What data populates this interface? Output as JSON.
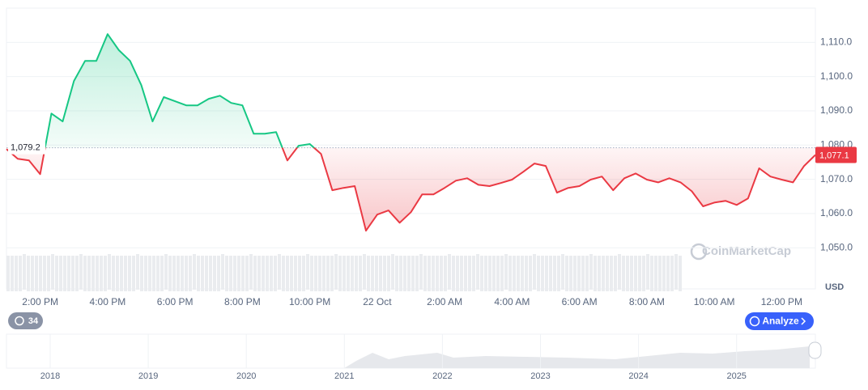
{
  "chart_data": {
    "type": "line",
    "categories": [
      null,
      null,
      null,
      "2:00 PM",
      null,
      null,
      null,
      null,
      null,
      "4:00 PM",
      null,
      null,
      null,
      null,
      null,
      "6:00 PM",
      null,
      null,
      null,
      null,
      null,
      "8:00 PM",
      null,
      null,
      null,
      null,
      null,
      "10:00 PM",
      null,
      null,
      null,
      null,
      null,
      "22 Oct",
      null,
      null,
      null,
      null,
      null,
      "2:00 AM",
      null,
      null,
      null,
      null,
      null,
      "4:00 AM",
      null,
      null,
      null,
      null,
      null,
      "6:00 AM",
      null,
      null,
      null,
      null,
      null,
      "8:00 AM",
      null,
      null,
      null,
      null,
      null,
      "10:00 AM",
      null,
      null,
      null,
      null,
      null,
      "12:00 PM",
      null,
      null,
      null
    ],
    "values": [
      1078.8,
      1076,
      1075.5,
      1071.5,
      1089.2,
      1086.9,
      1098.7,
      1104.6,
      1104.6,
      1112.4,
      1107.7,
      1104.6,
      1097.5,
      1086.9,
      1094,
      1092.8,
      1091.6,
      1091.6,
      1093.5,
      1094.4,
      1092.3,
      1091.6,
      1083.3,
      1083.3,
      1083.8,
      1075.5,
      1079.8,
      1080.3,
      1077.4,
      1066.8,
      1067.5,
      1068,
      1055,
      1059.7,
      1060.9,
      1057.3,
      1060.4,
      1065.6,
      1065.6,
      1067.5,
      1069.6,
      1070.3,
      1068.4,
      1068,
      1068.9,
      1069.9,
      1072.2,
      1074.6,
      1073.9,
      1066.1,
      1067.5,
      1068,
      1069.9,
      1070.8,
      1066.8,
      1070.3,
      1071.7,
      1069.9,
      1069.1,
      1070.3,
      1069.1,
      1066.5,
      1062.1,
      1063.2,
      1063.7,
      1062.5,
      1064.4,
      1073.2,
      1070.8,
      1069.9,
      1069.1,
      1073.9,
      1077.1
    ],
    "up_color": "#16c784",
    "down_color": "#ea3943",
    "baseline": {
      "value": 1079.2,
      "label": "1,079.2"
    },
    "current": {
      "value": 1077.1,
      "label": "1,077.1"
    },
    "ylim": [
      1038,
      1120
    ],
    "yticks": [
      {
        "value": 1050,
        "label": "1,050.0"
      },
      {
        "value": 1060,
        "label": "1,060.0"
      },
      {
        "value": 1070,
        "label": "1,070.0"
      },
      {
        "value": 1080,
        "label": "1,080.0"
      },
      {
        "value": 1090,
        "label": "1,090.0"
      },
      {
        "value": 1100,
        "label": "1,100.0"
      },
      {
        "value": 1110,
        "label": "1,110.0"
      }
    ],
    "y_axis_label": "USD",
    "grid": true
  },
  "navigator": {
    "labels": [
      "2018",
      "2019",
      "2020",
      "2021",
      "2022",
      "2023",
      "2024",
      "2025"
    ]
  },
  "watermark": "CoinMarketCap",
  "badge": 34,
  "analyze_button": "Analyze"
}
